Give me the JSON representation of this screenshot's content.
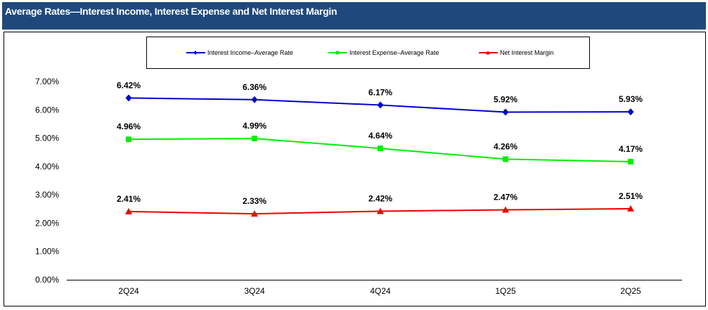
{
  "header": {
    "title": "Average Rates—Interest Income, Interest Expense and Net Interest Margin"
  },
  "chart_data": {
    "type": "line",
    "title": "Average Rates—Interest Income, Interest Expense and Net Interest Margin",
    "categories": [
      "2Q24",
      "3Q24",
      "4Q24",
      "1Q25",
      "2Q25"
    ],
    "ylim": [
      0,
      7
    ],
    "yticks": [
      "0.00%",
      "1.00%",
      "2.00%",
      "3.00%",
      "4.00%",
      "5.00%",
      "6.00%",
      "7.00%"
    ],
    "grid": false,
    "legend_position": "top",
    "series": [
      {
        "name": "Interest Income–Average Rate",
        "color": "#0000cc",
        "marker": "diamond",
        "values": [
          6.42,
          6.36,
          6.17,
          5.92,
          5.93
        ],
        "labels": [
          "6.42%",
          "6.36%",
          "6.17%",
          "5.92%",
          "5.93%"
        ]
      },
      {
        "name": "Interest Expense–Average Rate",
        "color": "#00ee00",
        "marker": "square",
        "values": [
          4.96,
          4.99,
          4.64,
          4.26,
          4.17
        ],
        "labels": [
          "4.96%",
          "4.99%",
          "4.64%",
          "4.26%",
          "4.17%"
        ]
      },
      {
        "name": "Net Interest Margin",
        "color": "#ee0000",
        "marker": "triangle",
        "values": [
          2.41,
          2.33,
          2.42,
          2.47,
          2.51
        ],
        "labels": [
          "2.41%",
          "2.33%",
          "2.42%",
          "2.47%",
          "2.51%"
        ]
      }
    ]
  }
}
